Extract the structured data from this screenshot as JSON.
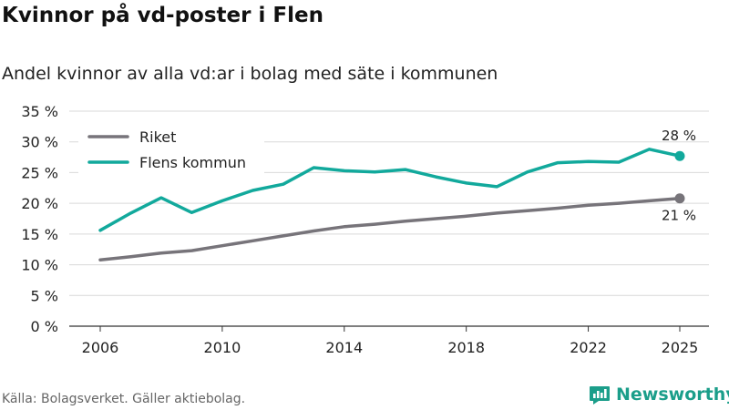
{
  "header": {
    "title": "Kvinnor på vd-poster i Flen",
    "subtitle": "Andel kvinnor av alla vd:ar i bolag med säte i kommunen"
  },
  "footer": {
    "source": "Källa: Bolagsverket. Gäller aktiebolag.",
    "brand": "Newsworthy",
    "brand_icon": "newsworthy-logo-icon"
  },
  "colors": {
    "riket": "#77747a",
    "flen": "#12a99c",
    "grid": "#d9d9d9",
    "axis": "#333333",
    "brand": "#1b9e8a"
  },
  "chart_data": {
    "type": "line",
    "title": "Andel kvinnor av alla vd:ar i bolag med säte i kommunen",
    "xlabel": "",
    "ylabel": "",
    "x": [
      2006,
      2007,
      2008,
      2009,
      2010,
      2011,
      2012,
      2013,
      2014,
      2015,
      2016,
      2017,
      2018,
      2019,
      2020,
      2021,
      2022,
      2023,
      2024,
      2025
    ],
    "xticks": [
      2006,
      2010,
      2014,
      2018,
      2022,
      2025
    ],
    "ylim": [
      0,
      35
    ],
    "yticks": [
      0,
      5,
      10,
      15,
      20,
      25,
      30,
      35
    ],
    "ytick_labels": [
      "0 %",
      "5 %",
      "10 %",
      "15 %",
      "20 %",
      "25 %",
      "30 %",
      "35 %"
    ],
    "grid": true,
    "legend_position": "top-left",
    "series": [
      {
        "name": "Riket",
        "key": "riket",
        "values": [
          10.8,
          11.3,
          11.9,
          12.3,
          13.1,
          13.9,
          14.7,
          15.5,
          16.2,
          16.6,
          17.1,
          17.5,
          17.9,
          18.4,
          18.8,
          19.2,
          19.7,
          20.0,
          20.4,
          20.8
        ],
        "end_label": "21 %",
        "end_label_position": "below"
      },
      {
        "name": "Flens kommun",
        "key": "flen",
        "values": [
          15.6,
          18.4,
          20.9,
          18.5,
          20.4,
          22.1,
          23.1,
          25.8,
          25.3,
          25.1,
          25.5,
          24.3,
          23.3,
          22.7,
          25.1,
          26.6,
          26.8,
          26.7,
          28.8,
          27.7
        ],
        "end_label": "28 %",
        "end_label_position": "above"
      }
    ]
  }
}
